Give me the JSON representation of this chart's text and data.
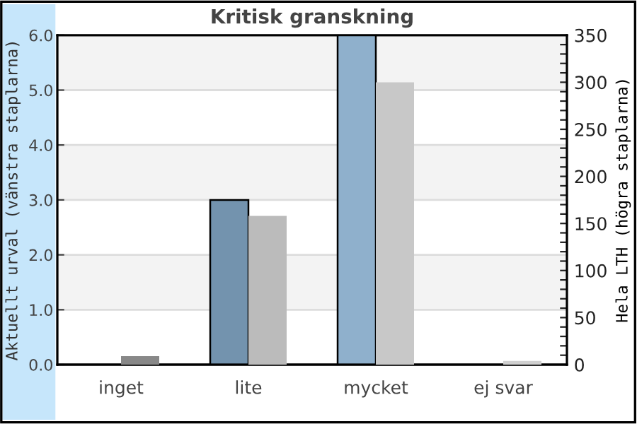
{
  "chart_data": {
    "type": "bar",
    "title": "Kritisk granskning",
    "ylabel": "Aktuellt urval (vänstra staplarna)",
    "y2label": "Hela LTH (högra staplarna)",
    "categories": [
      "inget",
      "lite",
      "mycket",
      "ej svar"
    ],
    "series": [
      {
        "colors": [
          "#7393ae",
          "#7393ae",
          "#8fb0cc",
          "#8fb0cc"
        ],
        "values": [
          0,
          3.0,
          6.0,
          0
        ]
      },
      {
        "colors": [
          "#888888",
          "#bbbbbb",
          "#c8c8c8",
          "#d0d0d0"
        ],
        "values": [
          9,
          158,
          300,
          4
        ],
        "axis": "y2"
      }
    ],
    "ylim": [
      0,
      6
    ],
    "yticks": [
      {
        "value": 0,
        "label": "0.0"
      },
      {
        "value": 1,
        "label": "1.0"
      },
      {
        "value": 2,
        "label": "2.0"
      },
      {
        "value": 3,
        "label": "3.0"
      },
      {
        "value": 4,
        "label": "4.0"
      },
      {
        "value": 5,
        "label": "5.0"
      },
      {
        "value": 6,
        "label": "6.0"
      }
    ],
    "y2lim": [
      0,
      350
    ],
    "y2ticks": [
      0,
      {
        "value": 10,
        "label": null
      },
      {
        "value": 20,
        "label": null
      },
      {
        "value": 30,
        "label": null
      },
      {
        "value": 40,
        "label": null
      },
      50,
      {
        "value": 60,
        "label": null
      },
      {
        "value": 70,
        "label": null
      },
      {
        "value": 80,
        "label": null
      },
      {
        "value": 90,
        "label": null
      },
      100,
      {
        "value": 110,
        "label": null
      },
      {
        "value": 120,
        "label": null
      },
      {
        "value": 130,
        "label": null
      },
      {
        "value": 140,
        "label": null
      },
      150,
      {
        "value": 160,
        "label": null
      },
      {
        "value": 170,
        "label": null
      },
      {
        "value": 180,
        "label": null
      },
      {
        "value": 190,
        "label": null
      },
      200,
      {
        "value": 210,
        "label": null
      },
      {
        "value": 220,
        "label": null
      },
      {
        "value": 230,
        "label": null
      },
      {
        "value": 240,
        "label": null
      },
      250,
      {
        "value": 260,
        "label": null
      },
      {
        "value": 270,
        "label": null
      },
      {
        "value": 280,
        "label": null
      },
      {
        "value": 290,
        "label": null
      },
      300,
      {
        "value": 310,
        "label": null
      },
      {
        "value": 320,
        "label": null
      },
      {
        "value": 330,
        "label": null
      },
      {
        "value": 340,
        "label": null
      },
      350
    ],
    "bands": [
      {
        "axis": "y",
        "from": 1,
        "to": 2,
        "color": "#f3f3f3"
      },
      {
        "axis": "y",
        "from": 3,
        "to": 4,
        "color": "#f3f3f3"
      },
      {
        "axis": "y",
        "from": 5,
        "to": 6,
        "color": "#f3f3f3"
      }
    ],
    "grid": "y"
  }
}
